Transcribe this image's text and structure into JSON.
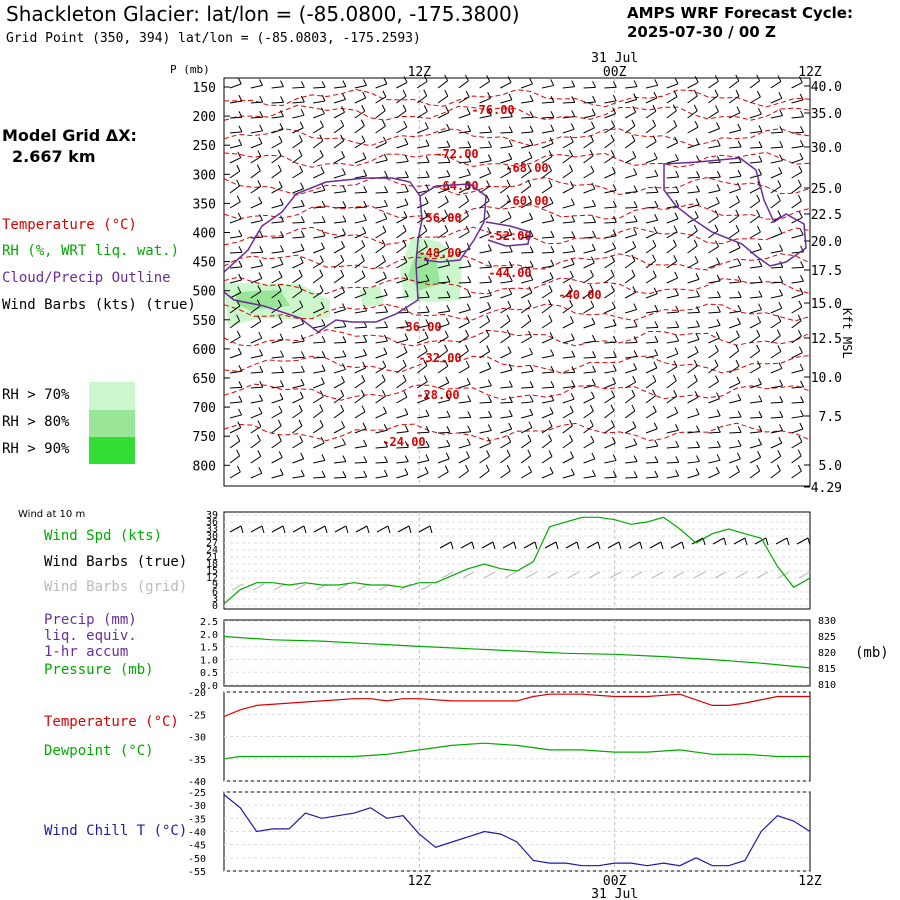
{
  "header": {
    "title": "Shackleton Glacier:  lat/lon = (-85.0800, -175.3800)",
    "subtitle": "Grid Point (350, 394) lat/lon = (-85.0803, -175.2593)",
    "cycle_line1": "AMPS WRF Forecast Cycle:",
    "cycle_line2": "2025-07-30 / 00  Z"
  },
  "model_grid": {
    "label": "Model Grid ΔX:",
    "value": "2.667 km"
  },
  "legend": {
    "temperature": "Temperature (°C)",
    "rh": "RH (%, WRT liq. wat.)",
    "cloud": "Cloud/Precip Outline",
    "wind": "Wind Barbs (kts) (true)",
    "rh70": "RH > 70%",
    "rh80": "RH > 80%",
    "rh90": "RH > 90%"
  },
  "colors": {
    "temperature": "#dd0000",
    "rh_text": "#00aa00",
    "cloud": "#6a2c9a",
    "rh70": "#ccf7cc",
    "rh80": "#99e699",
    "rh90": "#33dd33",
    "wind_chill": "#1a1aaa",
    "grid_gray": "#bbbbbb"
  },
  "time_axis": {
    "top_labels": [
      "12Z",
      "00Z",
      "12Z"
    ],
    "date_top": "31 Jul",
    "bottom_labels": [
      "12Z",
      "00Z",
      "12Z"
    ],
    "date_bottom": "31 Jul"
  },
  "chart_data": [
    {
      "type": "line",
      "title": "",
      "ylabel": "P (mb)",
      "yaxis_right_label": "Kft MSL",
      "pressure_ticks": [
        "150",
        "200",
        "250",
        "300",
        "350",
        "400",
        "450",
        "500",
        "550",
        "600",
        "650",
        "700",
        "750",
        "800"
      ],
      "height_ticks": [
        "40.0",
        "35.0",
        "30.0",
        "25.0",
        "22.5",
        "20.0",
        "17.5",
        "15.0",
        "12.5",
        "10.0",
        "7.5",
        "5.0",
        "4.29"
      ],
      "temperature_contour_labels": [
        "-76.00",
        "-72.00",
        "-68.00",
        "-64.00",
        "-60.00",
        "-56.00",
        "-52.00",
        "-48.00",
        "-44.00",
        "-40.00",
        "-36.00",
        "-32.00",
        "-28.00",
        "-24.00"
      ],
      "grid": true
    },
    {
      "type": "line",
      "title": "Wind at 10 m",
      "labels": [
        "Wind Spd (kts)",
        "Wind Barbs (true)",
        "Wind Barbs (grid)"
      ],
      "yticks": [
        "39",
        "36",
        "33",
        "30",
        "27",
        "24",
        "21",
        "18",
        "15",
        "12",
        "9",
        "6",
        "3",
        "0"
      ],
      "ylim": [
        0,
        39
      ],
      "series": [
        {
          "name": "Wind Spd (kts)",
          "x": [
            0,
            1,
            2,
            3,
            4,
            5,
            6,
            7,
            8,
            9,
            10,
            11,
            12,
            13,
            14,
            15,
            16,
            17,
            18,
            19,
            20,
            21,
            22,
            23,
            24,
            25,
            26,
            27,
            28,
            29,
            30,
            31,
            32,
            33,
            34,
            35,
            36
          ],
          "values": [
            1,
            7,
            10,
            10,
            9,
            10,
            9,
            9,
            10,
            9,
            9,
            8,
            10,
            10,
            13,
            16,
            18,
            16,
            15,
            19,
            34,
            36,
            38,
            38,
            37,
            35,
            36,
            38,
            33,
            27,
            31,
            33,
            31,
            29,
            17,
            8,
            12
          ]
        }
      ]
    },
    {
      "type": "line",
      "title": "",
      "labels": [
        "Precip (mm)",
        "liq. equiv.",
        "1-hr accum",
        "Pressure (mb)"
      ],
      "left_ticks": [
        "2.5",
        "2.0",
        "1.5",
        "1.0",
        "0.5",
        "0.0"
      ],
      "right_ticks": [
        "830",
        "825",
        "820",
        "815",
        "810"
      ],
      "right_unit": "(mb)",
      "ylim_right": [
        810,
        830
      ],
      "series": [
        {
          "name": "Pressure (mb)",
          "x": [
            0,
            3,
            6,
            9,
            12,
            15,
            18,
            21,
            24,
            27,
            30,
            33,
            36
          ],
          "values": [
            825,
            824,
            823.6,
            822.8,
            822,
            821.3,
            820.6,
            819.9,
            819.6,
            818.9,
            818,
            816.9,
            815.5
          ]
        }
      ]
    },
    {
      "type": "line",
      "title": "",
      "labels": [
        "Temperature (°C)",
        "Dewpoint (°C)"
      ],
      "yticks": [
        "-20",
        "-25",
        "-30",
        "-35",
        "-40"
      ],
      "ylim": [
        -40,
        -20
      ],
      "series": [
        {
          "name": "Temperature (°C)",
          "x": [
            0,
            1,
            2,
            4,
            6,
            8,
            9,
            10,
            11,
            12,
            14,
            16,
            18,
            19,
            20,
            21,
            22,
            24,
            26,
            28,
            30,
            31,
            32,
            34,
            36
          ],
          "values": [
            -25.5,
            -24,
            -23,
            -22.5,
            -22,
            -21.5,
            -21.5,
            -22,
            -21.5,
            -21.5,
            -22,
            -22,
            -22,
            -21,
            -20.5,
            -20.5,
            -20.5,
            -21,
            -21,
            -20.5,
            -23,
            -23,
            -22.5,
            -21,
            -21
          ]
        },
        {
          "name": "Dewpoint (°C)",
          "x": [
            0,
            1,
            2,
            4,
            6,
            8,
            10,
            12,
            14,
            16,
            18,
            20,
            22,
            24,
            26,
            28,
            30,
            32,
            34,
            36
          ],
          "values": [
            -35,
            -34.5,
            -34.5,
            -34.5,
            -34.5,
            -34.5,
            -34,
            -33,
            -32,
            -31.5,
            -32,
            -33,
            -33,
            -33.5,
            -33.5,
            -33,
            -34,
            -34,
            -34.5,
            -34.5
          ]
        }
      ]
    },
    {
      "type": "line",
      "title": "",
      "labels": [
        "Wind Chill T (°C)"
      ],
      "yticks": [
        "-25",
        "-30",
        "-35",
        "-40",
        "-45",
        "-50",
        "-55"
      ],
      "ylim": [
        -55,
        -25
      ],
      "series": [
        {
          "name": "Wind Chill T (°C)",
          "x": [
            0,
            1,
            2,
            3,
            4,
            5,
            6,
            7,
            8,
            9,
            10,
            11,
            12,
            13,
            14,
            15,
            16,
            17,
            18,
            19,
            20,
            21,
            22,
            23,
            24,
            25,
            26,
            27,
            28,
            29,
            30,
            31,
            32,
            33,
            34,
            35,
            36
          ],
          "values": [
            -26,
            -31,
            -40,
            -39,
            -39,
            -33,
            -35,
            -34,
            -33,
            -31,
            -35,
            -34,
            -41,
            -46,
            -44,
            -42,
            -40,
            -41,
            -44,
            -51,
            -52,
            -52,
            -53,
            -53,
            -52,
            -52,
            -53,
            -52,
            -53,
            -50,
            -53,
            -53,
            -51,
            -40,
            -34,
            -36,
            -40
          ]
        }
      ]
    }
  ]
}
